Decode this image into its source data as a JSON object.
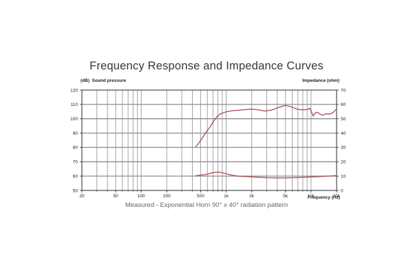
{
  "page": {
    "title": "Frequency Response and Impedance Curves",
    "caption": "Measured - Exponential Horn 90° x 40° radiation pattern"
  },
  "chart_data": {
    "type": "line",
    "title": "Frequency Response and Impedance Curves",
    "x_axis": {
      "label": "Frequency (Hz)",
      "scale": "log",
      "min": 20,
      "max": 20000,
      "tick_values": [
        20,
        50,
        100,
        200,
        500,
        1000,
        2000,
        5000,
        10000,
        20000
      ],
      "tick_labels": [
        "20",
        "50",
        "100",
        "200",
        "500",
        "1k",
        "2k",
        "5k",
        "10k",
        "20k"
      ],
      "gridline_values": [
        30,
        40,
        50,
        60,
        70,
        80,
        90,
        100,
        200,
        300,
        400,
        500,
        600,
        700,
        800,
        900,
        1000,
        2000,
        3000,
        4000,
        5000,
        6000,
        7000,
        8000,
        9000,
        10000
      ]
    },
    "y_left": {
      "label": "(dB)  Sound pressure",
      "min": 50,
      "max": 120,
      "ticks": [
        120,
        110,
        100,
        90,
        80,
        70,
        60,
        50
      ]
    },
    "y_right": {
      "label": "Impedance (ohm)",
      "min": 0,
      "max": 70,
      "ticks": [
        70,
        60,
        50,
        40,
        30,
        20,
        10,
        0
      ]
    },
    "grid": true,
    "legend": "none",
    "series": [
      {
        "name": "sound-pressure-response",
        "axis": "left",
        "unit": "dB",
        "points": [
          [
            443,
            80.7
          ],
          [
            487,
            83.8
          ],
          [
            535,
            87.4
          ],
          [
            587,
            91.0
          ],
          [
            645,
            94.2
          ],
          [
            708,
            98.2
          ],
          [
            778,
            101.4
          ],
          [
            854,
            103.3
          ],
          [
            938,
            104.3
          ],
          [
            1030,
            105.0
          ],
          [
            1240,
            105.7
          ],
          [
            1420,
            106.0
          ],
          [
            1700,
            106.4
          ],
          [
            2000,
            106.7
          ],
          [
            2400,
            106.2
          ],
          [
            2870,
            105.4
          ],
          [
            3500,
            106.2
          ],
          [
            4200,
            108.0
          ],
          [
            5000,
            109.3
          ],
          [
            5800,
            108.4
          ],
          [
            7000,
            106.5
          ],
          [
            8200,
            106.2
          ],
          [
            9100,
            106.4
          ],
          [
            9690,
            107.4
          ],
          [
            10000,
            105.4
          ],
          [
            10620,
            101.9
          ],
          [
            11000,
            103.5
          ],
          [
            11660,
            104.6
          ],
          [
            12390,
            103.8
          ],
          [
            13220,
            102.7
          ],
          [
            14060,
            102.5
          ],
          [
            14950,
            103.5
          ],
          [
            15920,
            103.2
          ],
          [
            16940,
            103.5
          ],
          [
            18030,
            104.2
          ],
          [
            19200,
            105.7
          ],
          [
            20000,
            106.8
          ]
        ]
      },
      {
        "name": "impedance",
        "axis": "right",
        "unit": "ohm",
        "points": [
          [
            443,
            10.3
          ],
          [
            487,
            10.6
          ],
          [
            587,
            11.2
          ],
          [
            708,
            12.5
          ],
          [
            824,
            12.8
          ],
          [
            969,
            11.9
          ],
          [
            1170,
            10.6
          ],
          [
            1420,
            9.9
          ],
          [
            1720,
            9.7
          ],
          [
            2320,
            9.2
          ],
          [
            3180,
            8.8
          ],
          [
            4370,
            8.7
          ],
          [
            5570,
            8.8
          ],
          [
            7120,
            9.0
          ],
          [
            9250,
            9.3
          ],
          [
            11800,
            9.6
          ],
          [
            14300,
            9.9
          ],
          [
            17600,
            10.1
          ],
          [
            20000,
            10.3
          ]
        ]
      }
    ],
    "colors": {
      "curve": "#a4464b",
      "grid_horizontal": "#8c8c8c",
      "grid_vertical": "#a3a3a3",
      "plot_border": "#4a4a4a",
      "tick_text": "#1b1b1b"
    }
  }
}
